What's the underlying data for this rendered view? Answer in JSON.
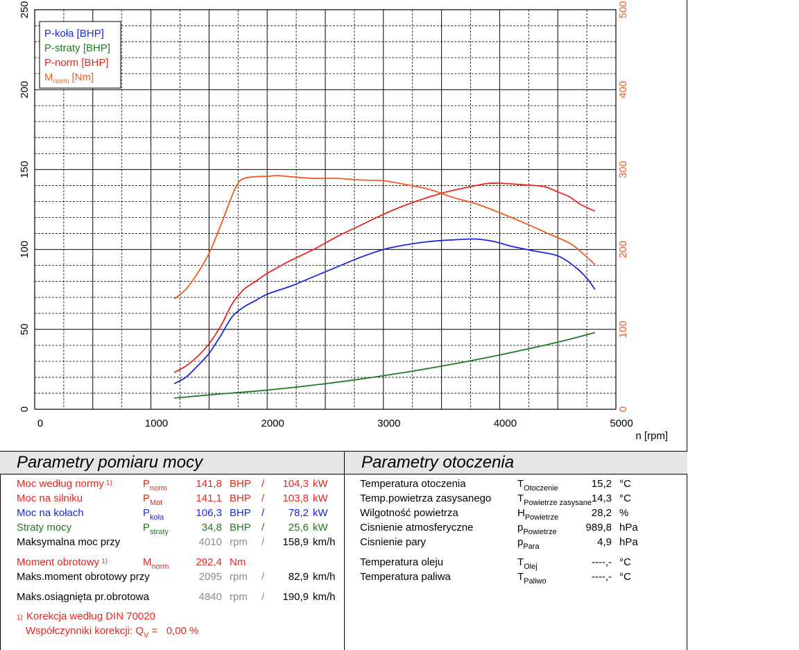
{
  "chart_data": {
    "type": "line",
    "xlabel": "n [rpm]",
    "xlim": [
      0,
      5000
    ],
    "x_ticks": [
      "0",
      "1000",
      "2000",
      "3000",
      "4000",
      "5000"
    ],
    "ylim_left": [
      0,
      250
    ],
    "y_ticks_left": [
      "0",
      "50",
      "100",
      "150",
      "200",
      "250"
    ],
    "ylim_right": [
      0,
      500
    ],
    "y_ticks_right": [
      "0",
      "100",
      "200",
      "300",
      "400",
      "500"
    ],
    "grid": true,
    "legend_position": "top-left",
    "legend": [
      {
        "text": "P-koła [BHP]",
        "color": "#1a28d6"
      },
      {
        "text": "P-straty [BHP]",
        "color": "#1f7a1f"
      },
      {
        "text": "P-norm [BHP]",
        "color": "#e8261c"
      },
      {
        "text": "M",
        "sub": "norm",
        "unit": " [Nm]",
        "color": "#f05a1e"
      }
    ],
    "series": [
      {
        "name": "P-koła [BHP]",
        "axis": "left",
        "color": "#1a28d6",
        "x": [
          1200,
          1300,
          1400,
          1500,
          1600,
          1700,
          1800,
          1900,
          2000,
          2200,
          2400,
          2600,
          2800,
          3000,
          3200,
          3400,
          3600,
          3800,
          3950,
          4100,
          4300,
          4500,
          4650,
          4750,
          4820
        ],
        "y": [
          16,
          20,
          27,
          35,
          46,
          58,
          64,
          68,
          72,
          77,
          83,
          89,
          95,
          100,
          103,
          105,
          106,
          106.5,
          105,
          102,
          99,
          96,
          89,
          82,
          75
        ]
      },
      {
        "name": "P-straty [BHP]",
        "axis": "left",
        "color": "#1f7a1f",
        "x": [
          1200,
          1500,
          2000,
          2500,
          3000,
          3500,
          4000,
          4500,
          4820
        ],
        "y": [
          7,
          9,
          12,
          16,
          21,
          27,
          34,
          42,
          48
        ]
      },
      {
        "name": "P-norm [BHP]",
        "axis": "left",
        "color": "#e8261c",
        "x": [
          1200,
          1300,
          1400,
          1500,
          1600,
          1700,
          1800,
          1900,
          2000,
          2200,
          2400,
          2600,
          2800,
          3000,
          3200,
          3400,
          3600,
          3800,
          3900,
          4000,
          4100,
          4200,
          4300,
          4400,
          4500,
          4600,
          4700,
          4820
        ],
        "y": [
          23,
          27,
          33,
          41,
          52,
          66,
          75,
          80,
          85,
          93,
          100,
          108,
          115,
          122,
          128,
          133,
          137,
          140,
          141.3,
          141.5,
          141,
          140.5,
          140,
          139,
          136,
          133,
          128,
          124
        ]
      },
      {
        "name": "Mnorm [Nm]",
        "axis": "right",
        "color": "#f05a1e",
        "x": [
          1200,
          1300,
          1400,
          1500,
          1600,
          1700,
          1750,
          1800,
          1900,
          2000,
          2095,
          2200,
          2400,
          2600,
          2800,
          3000,
          3200,
          3400,
          3600,
          3800,
          4000,
          4200,
          4400,
          4600,
          4700,
          4820
        ],
        "y": [
          138,
          150,
          170,
          195,
          230,
          268,
          283,
          289,
          291,
          291.5,
          292.4,
          291,
          289,
          289,
          287,
          286,
          281,
          275,
          265,
          257,
          246,
          234,
          221,
          208,
          197,
          181
        ]
      }
    ]
  },
  "sections": {
    "left_title": "Parametry pomiaru mocy",
    "right_title": "Parametry otoczenia"
  },
  "measurements": [
    {
      "label": "Moc według normy",
      "note": "1)",
      "sym": "P",
      "sub": "norm",
      "v1": "141,8",
      "u1": "BHP",
      "sep": "/",
      "v2": "104,3",
      "u2": "kW",
      "color": "red"
    },
    {
      "label": "Moc na silniku",
      "note": "",
      "sym": "P",
      "sub": "Mot",
      "v1": "141,1",
      "u1": "BHP",
      "sep": "/",
      "v2": "103,8",
      "u2": "kW",
      "color": "red"
    },
    {
      "label": "Moc na kołach",
      "note": "",
      "sym": "P",
      "sub": "koła",
      "v1": "106,3",
      "u1": "BHP",
      "sep": "/",
      "v2": "78,2",
      "u2": "kW",
      "color": "blue"
    },
    {
      "label": "Straty mocy",
      "note": "",
      "sym": "P",
      "sub": "straty",
      "v1": "34,8",
      "u1": "BHP",
      "sep": "/",
      "v2": "25,6",
      "u2": "kW",
      "color": "green"
    },
    {
      "label": "Maksymalna moc przy",
      "note": "",
      "sym": "",
      "sub": "",
      "v1": "4010",
      "u1": "rpm",
      "sep": "/",
      "v2": "158,9",
      "u2": "km/h",
      "color": "mixed"
    },
    {
      "label": "Moment obrotowy",
      "note": "1)",
      "sym": "M",
      "sub": "norm",
      "v1": "292,4",
      "u1": "Nm",
      "sep": "",
      "v2": "",
      "u2": "",
      "color": "red"
    },
    {
      "label": "Maks.moment obrotowy przy",
      "note": "",
      "sym": "",
      "sub": "",
      "v1": "2095",
      "u1": "rpm",
      "sep": "/",
      "v2": "82,9",
      "u2": "km/h",
      "color": "mixed"
    },
    {
      "label": "Maks.osiągnięta pr.obrotowa",
      "note": "",
      "sym": "",
      "sub": "",
      "v1": "4840",
      "u1": "rpm",
      "sep": "/",
      "v2": "190,9",
      "u2": "km/h",
      "color": "mixed"
    }
  ],
  "correction": {
    "note": "1)",
    "line1": "Korekcja według DIN 70020",
    "line2_label": "Współczynniki korekcji: Q",
    "line2_sub": "V",
    "line2_value": " =   0,00 %"
  },
  "environment": [
    {
      "label": "Temperatura otoczenia",
      "sym": "T",
      "sub": "Otoczenie",
      "value": "15,2",
      "unit": "°C"
    },
    {
      "label": "Temp.powietrza zasysanego",
      "sym": "T",
      "sub": "Powietrze zasysane",
      "value": "14,3",
      "unit": "°C"
    },
    {
      "label": "Wilgotność powietrza",
      "sym": "H",
      "sub": "Powietrze",
      "value": "28,2",
      "unit": "%"
    },
    {
      "label": "Cisnienie atmosferyczne",
      "sym": "p",
      "sub": "Powietrze",
      "value": "989,8",
      "unit": "hPa"
    },
    {
      "label": "Cisnienie pary",
      "sym": "p",
      "sub": "Para",
      "value": "4,9",
      "unit": "hPa"
    },
    {
      "label": "Temperatura oleju",
      "sym": "T",
      "sub": "Olej",
      "value": "----,-",
      "unit": "°C"
    },
    {
      "label": "Temperatura paliwa",
      "sym": "T",
      "sub": "Paliwo",
      "value": "----,-",
      "unit": "°C"
    }
  ]
}
